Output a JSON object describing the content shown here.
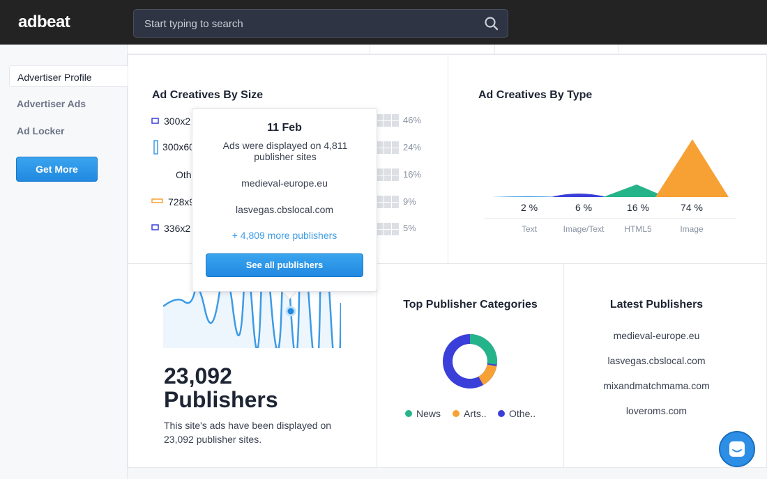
{
  "app": {
    "logo": "adbeat"
  },
  "search": {
    "placeholder": "Start typing to search"
  },
  "sidebar": {
    "items": [
      {
        "label": "Advertiser Profile"
      },
      {
        "label": "Advertiser Ads"
      },
      {
        "label": "Ad Locker"
      }
    ],
    "get_more": "Get More"
  },
  "by_size": {
    "title": "Ad Creatives By Size",
    "rows": [
      {
        "label": "300x2",
        "pct": "46%"
      },
      {
        "label": "300x60",
        "pct": "24%"
      },
      {
        "label": "Othe",
        "pct": "16%"
      },
      {
        "label": "728x9",
        "pct": "9%"
      },
      {
        "label": "336x2",
        "pct": "5%"
      }
    ]
  },
  "tooltip": {
    "date": "11 Feb",
    "description": "Ads were displayed on 4,811 publisher sites",
    "sites": [
      "medieval-europe.eu",
      "lasvegas.cbslocal.com"
    ],
    "more": "+ 4,809 more publishers",
    "button": "See all publishers"
  },
  "by_type": {
    "title": "Ad Creatives By Type",
    "items": [
      {
        "pct": "2 %",
        "label": "Text"
      },
      {
        "pct": "6 %",
        "label": "Image/Text"
      },
      {
        "pct": "16 %",
        "label": "HTML5"
      },
      {
        "pct": "74 %",
        "label": "Image"
      }
    ],
    "colors": [
      "#3c9be6",
      "#3b3fd9",
      "#25b48a",
      "#f7a135"
    ]
  },
  "publishers": {
    "count": "23,092",
    "label": "Publishers",
    "description": "This site's ads have been displayed on 23,092 publisher sites."
  },
  "categories": {
    "title": "Top Publisher Categories",
    "legend": [
      {
        "label": "News",
        "color": "#25b48a"
      },
      {
        "label": "Arts..",
        "color": "#f7a135"
      },
      {
        "label": "Othe..",
        "color": "#3b3fd9"
      }
    ]
  },
  "latest": {
    "title": "Latest Publishers",
    "items": [
      "medieval-europe.eu",
      "lasvegas.cbslocal.com",
      "mixandmatchmama.com",
      "loveroms.com"
    ]
  }
}
